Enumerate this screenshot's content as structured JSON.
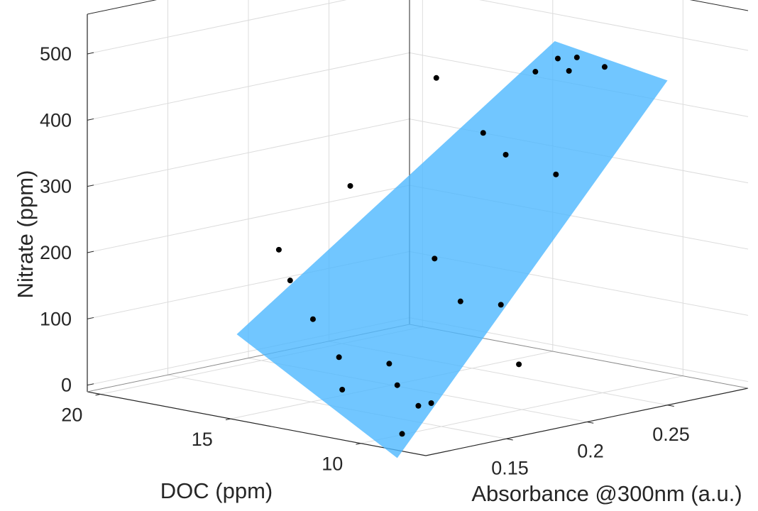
{
  "chart_data": {
    "type": "scatter",
    "subtype": "3d-scatter-with-fitted-plane",
    "xlabel": "DOC (ppm)",
    "ylabel": "Absorbance @300nm (a.u.)",
    "zlabel": "Nitrate (ppm)",
    "x_ticks": [
      "10",
      "15",
      "20"
    ],
    "y_ticks": [
      "0.15",
      "0.2",
      "0.25"
    ],
    "z_ticks": [
      "0",
      "100",
      "200",
      "300",
      "400",
      "500"
    ],
    "grid": true,
    "plane_color": "#4DB8FF",
    "point_color": "#000000",
    "points": [
      {
        "doc": 7.5,
        "absorbance": 0.168,
        "nitrate": 535
      },
      {
        "doc": 8.0,
        "absorbance": 0.19,
        "nitrate": 540
      },
      {
        "doc": 8.5,
        "absorbance": 0.205,
        "nitrate": 510
      },
      {
        "doc": 9.0,
        "absorbance": 0.218,
        "nitrate": 520
      },
      {
        "doc": 8.8,
        "absorbance": 0.232,
        "nitrate": 500
      },
      {
        "doc": 10.5,
        "absorbance": 0.155,
        "nitrate": 510
      },
      {
        "doc": 10.0,
        "absorbance": 0.176,
        "nitrate": 420
      },
      {
        "doc": 10.0,
        "absorbance": 0.19,
        "nitrate": 380
      },
      {
        "doc": 9.0,
        "absorbance": 0.205,
        "nitrate": 350
      },
      {
        "doc": 13.0,
        "absorbance": 0.142,
        "nitrate": 335
      },
      {
        "doc": 11.0,
        "absorbance": 0.162,
        "nitrate": 230
      },
      {
        "doc": 10.5,
        "absorbance": 0.17,
        "nitrate": 165
      },
      {
        "doc": 10.0,
        "absorbance": 0.187,
        "nitrate": 155
      },
      {
        "doc": 15.0,
        "absorbance": 0.13,
        "nitrate": 230
      },
      {
        "doc": 15.0,
        "absorbance": 0.137,
        "nitrate": 180
      },
      {
        "doc": 14.0,
        "absorbance": 0.135,
        "nitrate": 130
      },
      {
        "doc": 9.0,
        "absorbance": 0.182,
        "nitrate": 75
      },
      {
        "doc": 13.0,
        "absorbance": 0.135,
        "nitrate": 80
      },
      {
        "doc": 12.0,
        "absorbance": 0.15,
        "nitrate": 70
      },
      {
        "doc": 12.0,
        "absorbance": 0.155,
        "nitrate": 35
      },
      {
        "doc": 13.0,
        "absorbance": 0.137,
        "nitrate": 30
      },
      {
        "doc": 11.5,
        "absorbance": 0.16,
        "nitrate": 5
      },
      {
        "doc": 11.5,
        "absorbance": 0.168,
        "nitrate": 5
      },
      {
        "doc": 12.0,
        "absorbance": 0.158,
        "nitrate": -40
      }
    ],
    "plane_corners": [
      {
        "doc": 7.5,
        "absorbance": 0.18,
        "nitrate": 575
      },
      {
        "doc": 7.5,
        "absorbance": 0.25,
        "nitrate": 480
      },
      {
        "doc": 12.0,
        "absorbance": 0.155,
        "nitrate": -75
      },
      {
        "doc": 16.0,
        "absorbance": 0.12,
        "nitrate": 100
      }
    ]
  }
}
